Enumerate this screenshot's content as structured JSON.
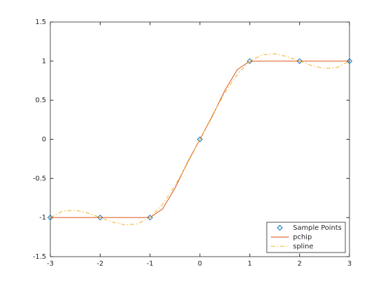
{
  "chart_data": {
    "type": "line",
    "xlim": [
      -3,
      3
    ],
    "xticks": [
      -3,
      -2,
      -1,
      0,
      1,
      2,
      3
    ],
    "ylim": [
      -1.5,
      1.5
    ],
    "yticks": [
      -1.5,
      -1,
      -0.5,
      0,
      0.5,
      1,
      1.5
    ],
    "grid": false,
    "legend": "southeast",
    "series": [
      {
        "name": "Sample Points",
        "color": "#0072bd",
        "marker": "diamond",
        "line": "none",
        "x": [
          -3,
          -2,
          -1,
          0,
          1,
          2,
          3
        ],
        "values": [
          -1,
          -1,
          -1,
          0,
          1,
          1,
          1
        ]
      },
      {
        "name": "pchip",
        "color": "#d95319",
        "marker": "none",
        "line": "solid",
        "x": [
          -3,
          -2.75,
          -2.5,
          -2.25,
          -2,
          -1.75,
          -1.5,
          -1.25,
          -1,
          -0.75,
          -0.5,
          -0.25,
          0,
          0.25,
          0.5,
          0.75,
          1,
          1.25,
          1.5,
          1.75,
          2,
          2.25,
          2.5,
          2.75,
          3
        ],
        "values": [
          -1,
          -1,
          -1,
          -1,
          -1,
          -1,
          -1,
          -1,
          -1,
          -0.8906,
          -0.625,
          -0.2969,
          0,
          0.2969,
          0.625,
          0.8906,
          1,
          1,
          1,
          1,
          1,
          1,
          1,
          1,
          1
        ]
      },
      {
        "name": "spline",
        "color": "#edb120",
        "marker": "none",
        "line": "dashdot",
        "x": [
          -3,
          -2.75,
          -2.5,
          -2.25,
          -2,
          -1.75,
          -1.5,
          -1.25,
          -1,
          -0.75,
          -0.5,
          -0.25,
          0,
          0.25,
          0.5,
          0.75,
          1,
          1.25,
          1.5,
          1.75,
          2,
          2.25,
          2.5,
          2.75,
          3
        ],
        "values": [
          -1,
          -0.918,
          -0.9063,
          -0.9414,
          -1,
          -1.0586,
          -1.0938,
          -1.082,
          -1,
          -0.832,
          -0.5938,
          -0.3086,
          0,
          0.3086,
          0.5938,
          0.832,
          1,
          1.082,
          1.0938,
          1.0586,
          1,
          0.9414,
          0.9063,
          0.918,
          1
        ]
      }
    ]
  }
}
